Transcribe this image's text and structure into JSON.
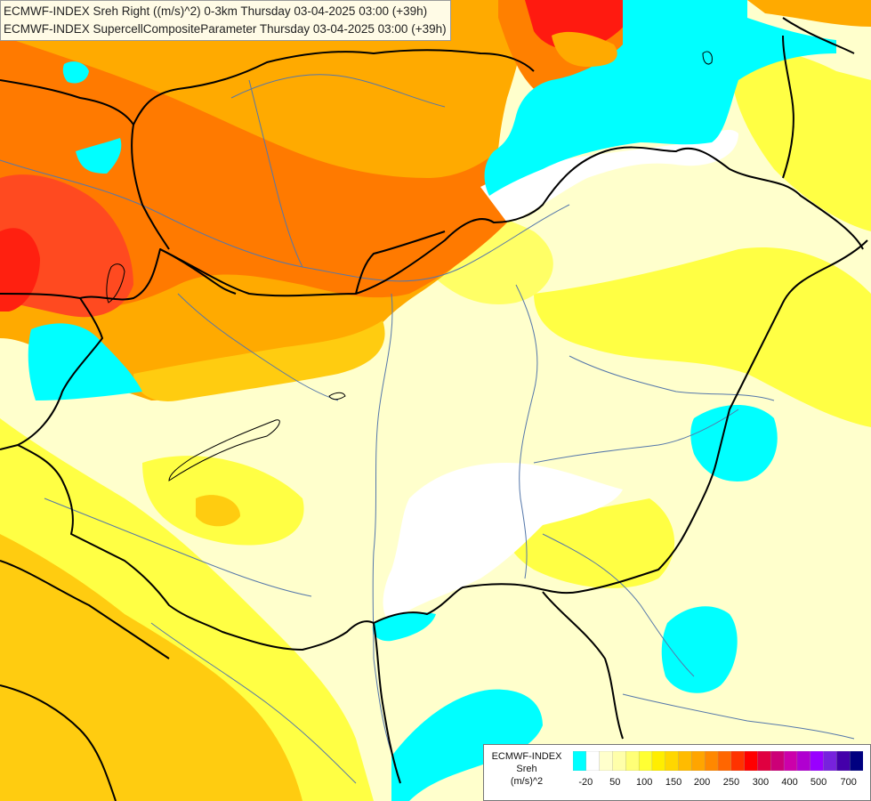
{
  "title": {
    "line1": "ECMWF-INDEX Sreh Right ((m/s)^2) 0-3km Thursday 03-04-2025 03:00 (+39h)",
    "line2": "ECMWF-INDEX SupercellCompositeParameter Thursday 03-04-2025 03:00 (+39h)"
  },
  "legend": {
    "source": "ECMWF-INDEX",
    "variable": "Sreh",
    "unit": "(m/s)^2",
    "colors": [
      "#00ffff",
      "#ffffff",
      "#ffffcc",
      "#ffffaa",
      "#ffff77",
      "#ffff33",
      "#ffee00",
      "#ffd700",
      "#ffbb00",
      "#ffa500",
      "#ff8800",
      "#ff6600",
      "#ff3300",
      "#ff0000",
      "#e00040",
      "#cc0077",
      "#cc00aa",
      "#b000d0",
      "#9900ff",
      "#7722dd",
      "#4400aa",
      "#000080"
    ],
    "labels": [
      "-20",
      "50",
      "100",
      "150",
      "200",
      "250",
      "300",
      "400",
      "500",
      "700"
    ]
  },
  "colors": {
    "light_yellow": "#ffffcc",
    "yellow": "#ffff33",
    "gold": "#ffcc00",
    "orange": "#ffa000",
    "dark_orange": "#ff7000",
    "red_orange": "#ff4020",
    "red": "#ff1010",
    "cyan": "#00ffff",
    "border": "#000000",
    "river": "#5577aa"
  }
}
